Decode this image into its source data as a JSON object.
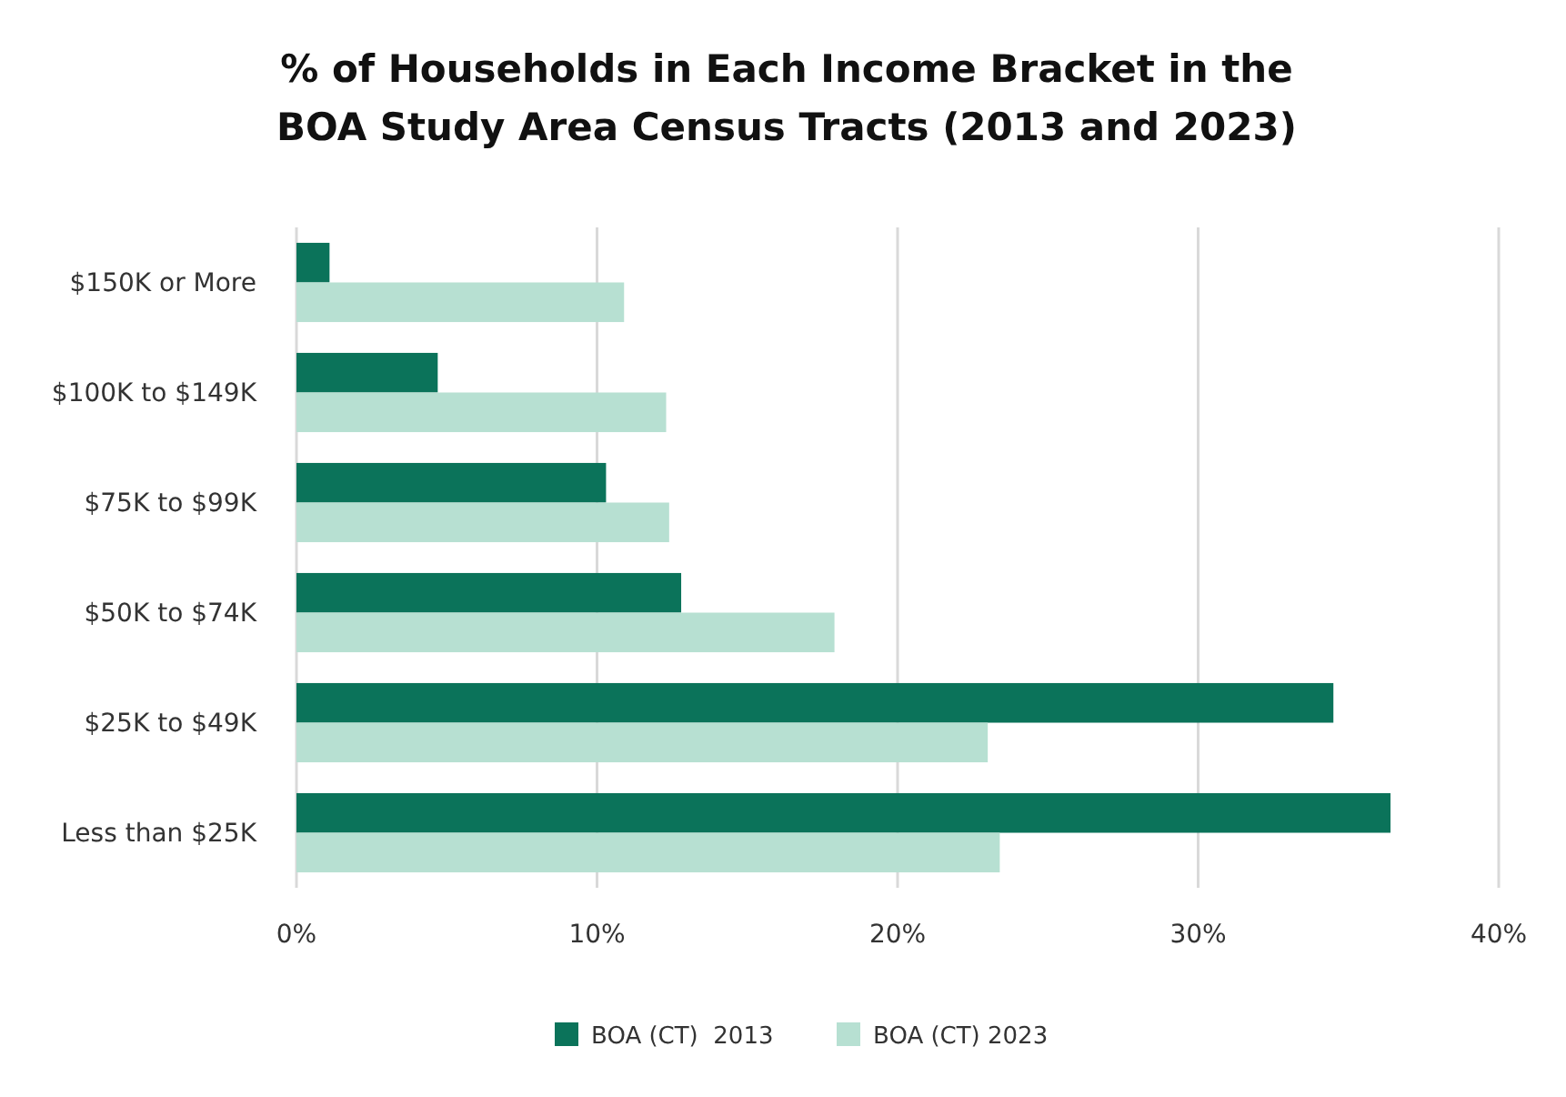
{
  "chart_data": {
    "type": "bar",
    "orientation": "horizontal",
    "title": "% of Households in Each Income Bracket in the\nBOA Study Area Census Tracts (2013 and 2023)",
    "categories": [
      "$150K or More",
      "$100K to $149K",
      "$75K to $99K",
      "$50K to $74K",
      "$25K to $49K",
      "Less than $25K"
    ],
    "series": [
      {
        "name": "BOA (CT)  2013",
        "color": "#0b735a",
        "values": [
          1.1,
          4.7,
          10.3,
          12.8,
          34.5,
          36.4
        ]
      },
      {
        "name": "BOA (CT) 2023",
        "color": "#b7e0d2",
        "values": [
          10.9,
          12.3,
          12.4,
          17.9,
          23.0,
          23.4
        ]
      }
    ],
    "xlim": [
      0,
      40
    ],
    "xticks": [
      {
        "value": 0,
        "label": "0%"
      },
      {
        "value": 10,
        "label": "10%"
      },
      {
        "value": 20,
        "label": "20%"
      },
      {
        "value": 30,
        "label": "30%"
      },
      {
        "value": 40,
        "label": "40%"
      }
    ],
    "grid": "x",
    "legend": "bottom"
  }
}
